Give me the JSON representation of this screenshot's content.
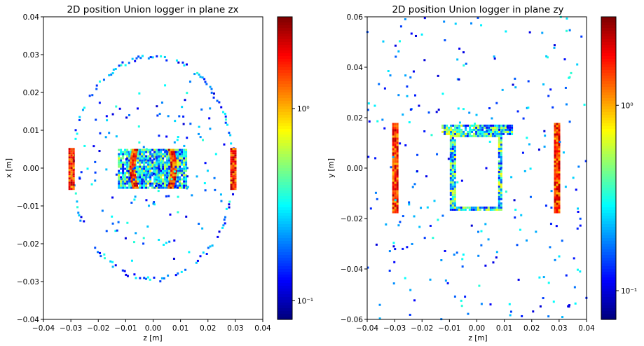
{
  "chart_data": [
    {
      "type": "heatmap",
      "title": "2D position Union logger in plane zx",
      "xlabel": "z [m]",
      "ylabel": "x [m]",
      "xlim": [
        -0.04,
        0.04
      ],
      "ylim": [
        -0.04,
        0.04
      ],
      "xticks": [
        "−0.04",
        "−0.03",
        "−0.02",
        "−0.01",
        "0.00",
        "0.01",
        "0.02",
        "0.03",
        "0.04"
      ],
      "yticks": [
        "0.04",
        "0.03",
        "0.02",
        "0.01",
        "0.00",
        "−0.01",
        "−0.02",
        "−0.03",
        "−0.04"
      ],
      "colorbar": {
        "scale": "log",
        "colormap": "jet",
        "range": [
          0.08,
          3.0
        ],
        "tick_labels": [
          "10⁻¹",
          "10⁰"
        ],
        "tick_values": [
          0.1,
          1.0
        ]
      },
      "regions": [
        {
          "shape": "ring",
          "center": [
            0,
            0
          ],
          "radius_z": 0.0295,
          "radius_x": 0.0295,
          "intensity": "low"
        },
        {
          "shape": "band",
          "z": [
            -0.0305,
            -0.0285
          ],
          "x": [
            -0.0055,
            0.0055
          ],
          "intensity": "high"
        },
        {
          "shape": "band",
          "z": [
            0.0285,
            0.0305
          ],
          "x": [
            -0.0055,
            0.0055
          ],
          "intensity": "high"
        },
        {
          "shape": "rectangle",
          "z": [
            -0.0125,
            0.0125
          ],
          "x": [
            -0.0052,
            0.0052
          ],
          "intensity": "medium"
        },
        {
          "shape": "arc",
          "z_center": -0.0075,
          "x": [
            -0.0052,
            0.0052
          ],
          "intensity": "high"
        },
        {
          "shape": "arc",
          "z_center": 0.0075,
          "x": [
            -0.0052,
            0.0052
          ],
          "intensity": "high"
        }
      ]
    },
    {
      "type": "heatmap",
      "title": "2D position Union logger in plane zy",
      "xlabel": "z [m]",
      "ylabel": "y [m]",
      "xlim": [
        -0.04,
        0.04
      ],
      "ylim": [
        -0.06,
        0.06
      ],
      "xticks": [
        "−0.04",
        "−0.03",
        "−0.02",
        "−0.01",
        "0.00",
        "0.01",
        "0.02",
        "0.03",
        "0.04"
      ],
      "yticks": [
        "0.06",
        "0.04",
        "0.02",
        "0.00",
        "−0.02",
        "−0.04",
        "−0.06"
      ],
      "colorbar": {
        "scale": "log",
        "colormap": "jet",
        "range": [
          0.07,
          3.0
        ],
        "tick_labels": [
          "10⁰",
          "10⁻¹"
        ],
        "tick_values": [
          1.0,
          0.1
        ]
      },
      "regions": [
        {
          "shape": "band",
          "z": [
            -0.0305,
            -0.0285
          ],
          "y": [
            -0.0175,
            0.0175
          ],
          "intensity": "high"
        },
        {
          "shape": "band",
          "z": [
            0.0285,
            0.0305
          ],
          "y": [
            -0.0175,
            0.0175
          ],
          "intensity": "high"
        },
        {
          "shape": "rectangle",
          "z": [
            -0.0125,
            0.0135
          ],
          "y": [
            0.0135,
            0.0175
          ],
          "intensity": "medium"
        },
        {
          "shape": "frame",
          "z": [
            -0.0095,
            0.0095
          ],
          "y": [
            -0.0165,
            0.0135
          ],
          "intensity": "medium"
        },
        {
          "shape": "scatter",
          "z": [
            -0.04,
            0.04
          ],
          "y": [
            -0.06,
            0.06
          ],
          "intensity": "low"
        }
      ]
    }
  ]
}
